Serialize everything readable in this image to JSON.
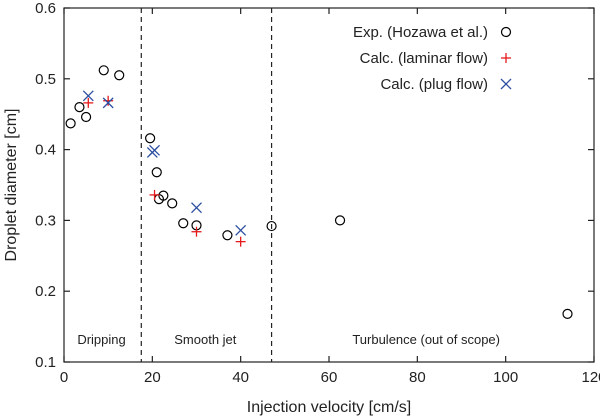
{
  "chart_data": {
    "type": "scatter",
    "title": "",
    "xlabel": "Injection velocity [cm/s]",
    "ylabel": "Droplet diameter [cm]",
    "xlim": [
      0,
      120
    ],
    "ylim": [
      0.1,
      0.6
    ],
    "xticks": [
      0,
      20,
      40,
      60,
      80,
      100,
      120
    ],
    "yticks": [
      0.1,
      0.2,
      0.3,
      0.4,
      0.5,
      0.6
    ],
    "grid": false,
    "legend_position": "top-right",
    "series": [
      {
        "name": "Exp. (Hozawa et al.)",
        "marker": "circle",
        "color": "#000000",
        "points": [
          [
            1.5,
            0.437
          ],
          [
            3.5,
            0.46
          ],
          [
            5,
            0.446
          ],
          [
            9,
            0.512
          ],
          [
            12.5,
            0.505
          ],
          [
            19.5,
            0.416
          ],
          [
            21,
            0.368
          ],
          [
            21.5,
            0.33
          ],
          [
            22.5,
            0.335
          ],
          [
            24.5,
            0.324
          ],
          [
            27,
            0.296
          ],
          [
            30,
            0.293
          ],
          [
            37,
            0.279
          ],
          [
            47,
            0.292
          ],
          [
            62.5,
            0.3
          ],
          [
            114,
            0.168
          ]
        ]
      },
      {
        "name": "Calc. (laminar flow)",
        "marker": "plus",
        "color": "#e41a1c",
        "points": [
          [
            5.5,
            0.466
          ],
          [
            10,
            0.469
          ],
          [
            20.5,
            0.336
          ],
          [
            30,
            0.284
          ],
          [
            40,
            0.27
          ]
        ]
      },
      {
        "name": "Calc. (plug flow)",
        "marker": "cross",
        "color": "#2b4ea0",
        "points": [
          [
            5.5,
            0.476
          ],
          [
            10,
            0.466
          ],
          [
            20,
            0.396
          ],
          [
            20.5,
            0.399
          ],
          [
            30,
            0.318
          ],
          [
            40,
            0.286
          ]
        ]
      }
    ],
    "regime_boundaries": [
      17.5,
      47
    ],
    "regime_labels": [
      {
        "text": "Dripping",
        "x": 8.5
      },
      {
        "text": "Smooth jet",
        "x": 32
      },
      {
        "text": "Turbulence (out of scope)",
        "x": 82
      }
    ]
  }
}
